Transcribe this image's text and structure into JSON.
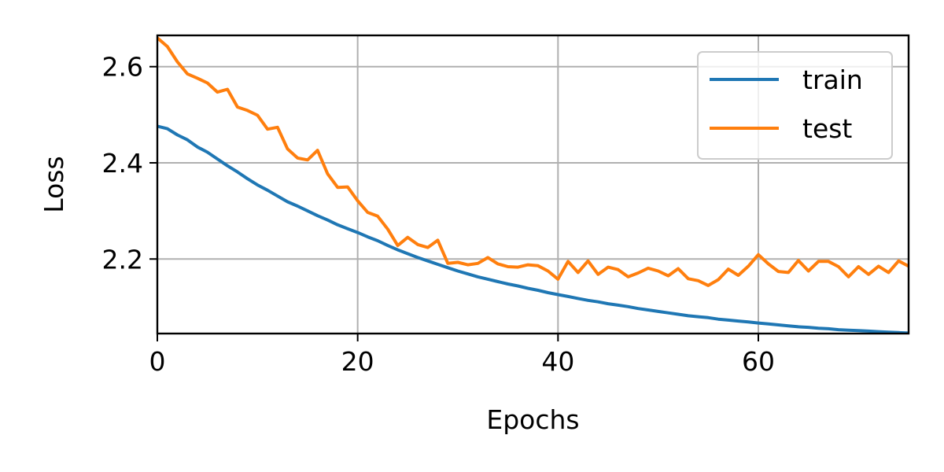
{
  "chart_data": {
    "type": "line",
    "title": "",
    "xlabel": "Epochs",
    "ylabel": "Loss",
    "xlim": [
      0,
      75
    ],
    "ylim": [
      2.045,
      2.665
    ],
    "xticks": [
      0,
      20,
      40,
      60
    ],
    "xtick_labels": [
      "0",
      "20",
      "40",
      "60"
    ],
    "yticks": [
      2.2,
      2.4,
      2.6
    ],
    "ytick_labels": [
      "2.2",
      "2.4",
      "2.6"
    ],
    "grid": true,
    "legend_position": "top-right",
    "series": [
      {
        "name": "train",
        "color": "#1f77b4",
        "x": [
          0,
          1,
          2,
          3,
          4,
          5,
          6,
          7,
          8,
          9,
          10,
          11,
          12,
          13,
          14,
          15,
          16,
          17,
          18,
          19,
          20,
          21,
          22,
          23,
          24,
          25,
          26,
          27,
          28,
          29,
          30,
          31,
          32,
          33,
          34,
          35,
          36,
          37,
          38,
          39,
          40,
          41,
          42,
          43,
          44,
          45,
          46,
          47,
          48,
          49,
          50,
          51,
          52,
          53,
          54,
          55,
          56,
          57,
          58,
          59,
          60,
          61,
          62,
          63,
          64,
          65,
          66,
          67,
          68,
          69,
          70,
          71,
          72,
          73,
          74,
          75
        ],
        "values": [
          2.476,
          2.471,
          2.458,
          2.448,
          2.433,
          2.422,
          2.408,
          2.394,
          2.381,
          2.367,
          2.354,
          2.343,
          2.331,
          2.319,
          2.31,
          2.3,
          2.29,
          2.281,
          2.271,
          2.263,
          2.255,
          2.246,
          2.238,
          2.228,
          2.219,
          2.211,
          2.203,
          2.196,
          2.189,
          2.182,
          2.175,
          2.169,
          2.163,
          2.158,
          2.153,
          2.148,
          2.144,
          2.139,
          2.135,
          2.13,
          2.126,
          2.122,
          2.118,
          2.114,
          2.111,
          2.107,
          2.104,
          2.101,
          2.097,
          2.094,
          2.091,
          2.088,
          2.085,
          2.082,
          2.08,
          2.078,
          2.075,
          2.073,
          2.071,
          2.069,
          2.067,
          2.065,
          2.063,
          2.061,
          2.059,
          2.058,
          2.056,
          2.055,
          2.053,
          2.052,
          2.051,
          2.05,
          2.049,
          2.048,
          2.047,
          2.046
        ]
      },
      {
        "name": "test",
        "color": "#ff7f0e",
        "x": [
          0,
          1,
          2,
          3,
          4,
          5,
          6,
          7,
          8,
          9,
          10,
          11,
          12,
          13,
          14,
          15,
          16,
          17,
          18,
          19,
          20,
          21,
          22,
          23,
          24,
          25,
          26,
          27,
          28,
          29,
          30,
          31,
          32,
          33,
          34,
          35,
          36,
          37,
          38,
          39,
          40,
          41,
          42,
          43,
          44,
          45,
          46,
          47,
          48,
          49,
          50,
          51,
          52,
          53,
          54,
          55,
          56,
          57,
          58,
          59,
          60,
          61,
          62,
          63,
          64,
          65,
          66,
          67,
          68,
          69,
          70,
          71,
          72,
          73,
          74,
          75
        ],
        "values": [
          2.66,
          2.642,
          2.61,
          2.585,
          2.576,
          2.566,
          2.547,
          2.553,
          2.516,
          2.509,
          2.499,
          2.47,
          2.474,
          2.429,
          2.41,
          2.406,
          2.426,
          2.377,
          2.349,
          2.35,
          2.321,
          2.297,
          2.289,
          2.262,
          2.228,
          2.245,
          2.23,
          2.224,
          2.239,
          2.191,
          2.193,
          2.188,
          2.191,
          2.203,
          2.19,
          2.184,
          2.183,
          2.188,
          2.186,
          2.175,
          2.158,
          2.195,
          2.172,
          2.196,
          2.168,
          2.183,
          2.178,
          2.163,
          2.171,
          2.181,
          2.175,
          2.165,
          2.18,
          2.159,
          2.155,
          2.145,
          2.157,
          2.179,
          2.166,
          2.185,
          2.209,
          2.19,
          2.174,
          2.172,
          2.197,
          2.175,
          2.195,
          2.195,
          2.184,
          2.163,
          2.184,
          2.168,
          2.185,
          2.172,
          2.196,
          2.185
        ]
      }
    ]
  }
}
